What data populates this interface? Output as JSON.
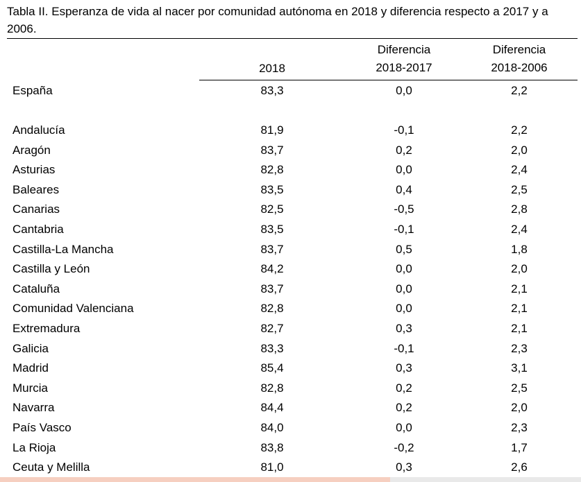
{
  "caption": "Tabla II. Esperanza de vida al nacer por comunidad autónoma en 2018 y diferencia respecto a 2017 y a 2006.",
  "headers": {
    "col_2018": "2018",
    "col_d17_line1": "Diferencia",
    "col_d17_line2": "2018-2017",
    "col_d06_line1": "Diferencia",
    "col_d06_line2": "2018-2006"
  },
  "total": {
    "name": "España",
    "v2018": "83,3",
    "d17": "0,0",
    "d06": "2,2"
  },
  "rows": [
    {
      "name": "Andalucía",
      "v2018": "81,9",
      "d17": "-0,1",
      "d06": "2,2"
    },
    {
      "name": "Aragón",
      "v2018": "83,7",
      "d17": "0,2",
      "d06": "2,0"
    },
    {
      "name": "Asturias",
      "v2018": "82,8",
      "d17": "0,0",
      "d06": "2,4"
    },
    {
      "name": "Baleares",
      "v2018": "83,5",
      "d17": "0,4",
      "d06": "2,5"
    },
    {
      "name": "Canarias",
      "v2018": "82,5",
      "d17": "-0,5",
      "d06": "2,8"
    },
    {
      "name": "Cantabria",
      "v2018": "83,5",
      "d17": "-0,1",
      "d06": "2,4"
    },
    {
      "name": "Castilla-La Mancha",
      "v2018": "83,7",
      "d17": "0,5",
      "d06": "1,8"
    },
    {
      "name": "Castilla y León",
      "v2018": "84,2",
      "d17": "0,0",
      "d06": "2,0"
    },
    {
      "name": "Cataluña",
      "v2018": "83,7",
      "d17": "0,0",
      "d06": "2,1"
    },
    {
      "name": "Comunidad Valenciana",
      "v2018": "82,8",
      "d17": "0,0",
      "d06": "2,1"
    },
    {
      "name": "Extremadura",
      "v2018": "82,7",
      "d17": "0,3",
      "d06": "2,1"
    },
    {
      "name": "Galicia",
      "v2018": "83,3",
      "d17": "-0,1",
      "d06": "2,3"
    },
    {
      "name": "Madrid",
      "v2018": "85,4",
      "d17": "0,3",
      "d06": "3,1"
    },
    {
      "name": "Murcia",
      "v2018": "82,8",
      "d17": "0,2",
      "d06": "2,5"
    },
    {
      "name": "Navarra",
      "v2018": "84,4",
      "d17": "0,2",
      "d06": "2,0"
    },
    {
      "name": "País Vasco",
      "v2018": "84,0",
      "d17": "0,0",
      "d06": "2,3"
    },
    {
      "name": "La Rioja",
      "v2018": "83,8",
      "d17": "-0,2",
      "d06": "1,7"
    },
    {
      "name": "Ceuta y Melilla",
      "v2018": "81,0",
      "d17": "0,3",
      "d06": "2,6"
    }
  ]
}
